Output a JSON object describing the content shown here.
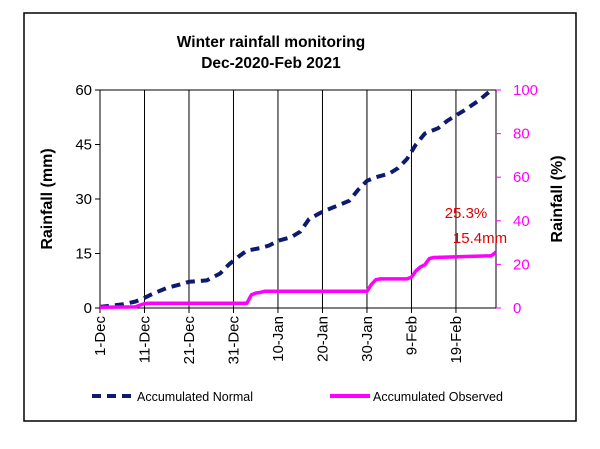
{
  "chart_data": {
    "type": "line",
    "title_line1": "Winter rainfall monitoring",
    "title_line2": "Dec-2020-Feb 2021",
    "ylabel": "Rainfall (mm)",
    "y2label": "Rainfall (%)",
    "xlabel": "",
    "ylim": [
      0,
      60
    ],
    "y2lim": [
      0,
      100
    ],
    "yticks": [
      "0",
      "15",
      "30",
      "45",
      "60"
    ],
    "y2ticks": [
      "0",
      "20",
      "40",
      "60",
      "80",
      "100"
    ],
    "x_categories": [
      "1-Dec",
      "11-Dec",
      "21-Dec",
      "31-Dec",
      "10-Jan",
      "20-Jan",
      "30-Jan",
      "9-Feb",
      "19-Feb"
    ],
    "x_tick_day_index": [
      0,
      10,
      20,
      30,
      40,
      50,
      60,
      70,
      80
    ],
    "x_range_days": [
      0,
      89
    ],
    "grid": "vertical",
    "legend_position": "bottom",
    "colors": {
      "normal": "#0d1a6e",
      "observed": "#ff00ff",
      "annotation": "#e00000",
      "right_axis": "#ff00ff"
    },
    "annotation_percent": "25.3%",
    "annotation_mm": "15.4mm",
    "series": [
      {
        "name": "Accumulated Normal",
        "axis": "left",
        "style": "dashed",
        "points": [
          [
            0,
            0.3
          ],
          [
            5,
            1.0
          ],
          [
            8,
            1.8
          ],
          [
            10,
            2.8
          ],
          [
            12,
            4.0
          ],
          [
            15,
            5.5
          ],
          [
            18,
            6.5
          ],
          [
            20,
            7.2
          ],
          [
            24,
            7.6
          ],
          [
            27,
            9.5
          ],
          [
            29,
            12.0
          ],
          [
            31,
            14.0
          ],
          [
            33,
            15.8
          ],
          [
            36,
            16.5
          ],
          [
            38,
            17.2
          ],
          [
            40,
            18.5
          ],
          [
            43,
            19.5
          ],
          [
            45,
            21.0
          ],
          [
            47,
            24.5
          ],
          [
            50,
            26.5
          ],
          [
            53,
            28.0
          ],
          [
            56,
            29.5
          ],
          [
            58,
            32.5
          ],
          [
            60,
            35.0
          ],
          [
            62,
            36.0
          ],
          [
            65,
            37.0
          ],
          [
            67,
            38.5
          ],
          [
            69,
            41.0
          ],
          [
            71,
            45.0
          ],
          [
            73,
            48.0
          ],
          [
            76,
            49.5
          ],
          [
            78,
            51.5
          ],
          [
            80,
            53.0
          ],
          [
            82,
            54.5
          ],
          [
            85,
            57.0
          ],
          [
            87,
            59.0
          ],
          [
            88,
            60.0
          ]
        ]
      },
      {
        "name": "Accumulated Observed",
        "axis": "left",
        "style": "solid",
        "points": [
          [
            0,
            0.2
          ],
          [
            8,
            0.3
          ],
          [
            9,
            0.8
          ],
          [
            10,
            1.2
          ],
          [
            11,
            1.3
          ],
          [
            33,
            1.3
          ],
          [
            34,
            3.6
          ],
          [
            35,
            4.1
          ],
          [
            36,
            4.3
          ],
          [
            37,
            4.6
          ],
          [
            60,
            4.6
          ],
          [
            61,
            6.5
          ],
          [
            62,
            7.8
          ],
          [
            63,
            8.0
          ],
          [
            69,
            8.0
          ],
          [
            70,
            8.5
          ],
          [
            71,
            10.2
          ],
          [
            72,
            11.3
          ],
          [
            73,
            11.9
          ],
          [
            74,
            13.6
          ],
          [
            75,
            13.9
          ],
          [
            88,
            14.4
          ],
          [
            89,
            15.4
          ]
        ]
      }
    ]
  }
}
